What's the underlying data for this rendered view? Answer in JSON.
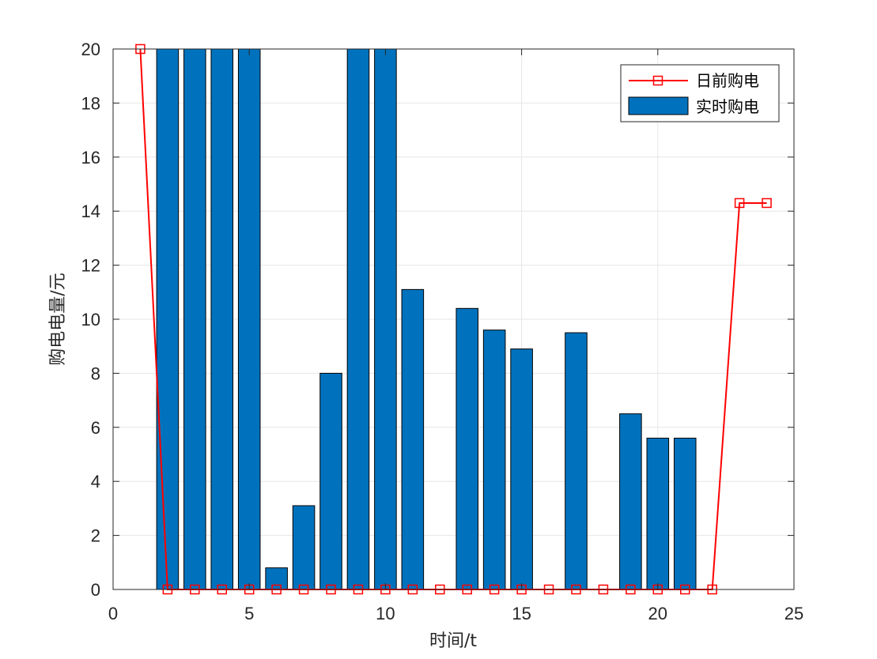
{
  "chart_data": {
    "type": "bar",
    "xlabel": "时间/t",
    "ylabel": "购电电量/元",
    "xlim": [
      0,
      25
    ],
    "ylim": [
      0,
      20
    ],
    "xticks": [
      0,
      5,
      10,
      15,
      20,
      25
    ],
    "yticks": [
      0,
      2,
      4,
      6,
      8,
      10,
      12,
      14,
      16,
      18,
      20
    ],
    "grid": true,
    "legend_position": "top-right",
    "series": [
      {
        "name": "日前购电",
        "type": "line",
        "color": "#ff0000",
        "marker": "square",
        "x": [
          1,
          2,
          3,
          4,
          5,
          6,
          7,
          8,
          9,
          10,
          11,
          12,
          13,
          14,
          15,
          16,
          17,
          18,
          19,
          20,
          21,
          22,
          23,
          24
        ],
        "values": [
          20,
          0,
          0,
          0,
          0,
          0,
          0,
          0,
          0,
          0,
          0,
          0,
          0,
          0,
          0,
          0,
          0,
          0,
          0,
          0,
          0,
          0,
          14.3,
          14.3
        ]
      },
      {
        "name": "实时购电",
        "type": "bar",
        "color": "#0072bd",
        "x": [
          1,
          2,
          3,
          4,
          5,
          6,
          7,
          8,
          9,
          10,
          11,
          12,
          13,
          14,
          15,
          16,
          17,
          18,
          19,
          20,
          21,
          22,
          23,
          24
        ],
        "values": [
          0,
          20,
          20,
          20,
          20,
          0.8,
          3.1,
          8.0,
          20,
          20,
          11.1,
          0,
          10.4,
          9.6,
          8.9,
          0,
          9.5,
          0,
          6.5,
          5.6,
          5.6,
          0,
          0,
          0
        ]
      }
    ]
  }
}
